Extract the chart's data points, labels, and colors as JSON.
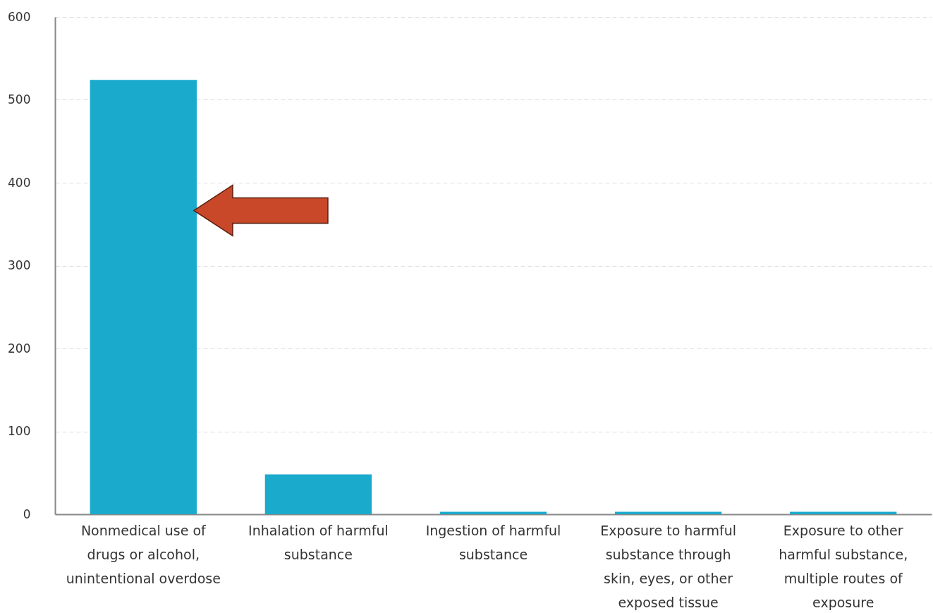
{
  "chart_data": {
    "type": "bar",
    "categories": [
      "Nonmedical use of drugs or alcohol, unintentional overdose",
      "Inhalation of harmful substance",
      "Ingestion of harmful substance",
      "Exposure to harmful substance through skin, eyes, or other exposed tissue",
      "Exposure to other harmful substance, multiple routes of exposure"
    ],
    "values": [
      524,
      48,
      3,
      3,
      3
    ],
    "color": "#1aaacc",
    "ylim": [
      0,
      600
    ],
    "yticks": [
      0,
      100,
      200,
      300,
      400,
      500,
      600
    ],
    "grid": "y"
  }
}
